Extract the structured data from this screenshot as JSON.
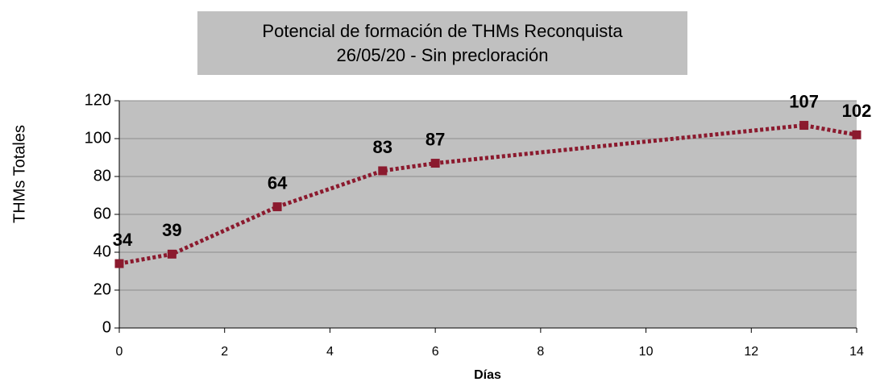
{
  "chart_data": {
    "type": "line",
    "title": "Potencial de formación de THMs Reconquista",
    "subtitle": "26/05/20 - Sin precloración",
    "x_label": "Días",
    "y_label": "THMs Totales",
    "x": [
      0,
      1,
      3,
      5,
      6,
      13,
      14
    ],
    "series": [
      {
        "name": "THMs Totales",
        "color": "#8b1a2e",
        "values": [
          34,
          39,
          64,
          83,
          87,
          107,
          102
        ]
      }
    ],
    "xlim": [
      0,
      14
    ],
    "xticks": [
      0,
      2,
      4,
      6,
      8,
      10,
      12,
      14
    ],
    "ylim": [
      0,
      120
    ],
    "yticks": [
      0,
      20,
      40,
      60,
      80,
      100,
      120
    ],
    "grid": true
  }
}
